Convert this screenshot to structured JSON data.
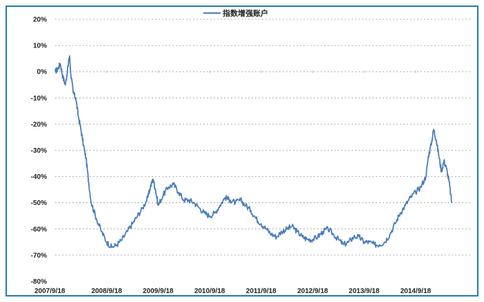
{
  "chart_data": {
    "type": "line",
    "title": "",
    "xlabel": "",
    "ylabel": "",
    "ylim": [
      -0.8,
      0.2
    ],
    "y_ticks": [
      0.2,
      0.1,
      0.0,
      -0.1,
      -0.2,
      -0.3,
      -0.4,
      -0.5,
      -0.6,
      -0.7,
      -0.8
    ],
    "y_tick_labels": [
      "20%",
      "10%",
      "0%",
      "-10%",
      "-20%",
      "-30%",
      "-40%",
      "-50%",
      "-60%",
      "-70%",
      "-80%"
    ],
    "x_tick_labels": [
      "2007/9/18",
      "2008/9/18",
      "2009/9/18",
      "2010/9/18",
      "2011/9/18",
      "2012/9/18",
      "2013/9/18",
      "2014/9/18"
    ],
    "x_range_years": [
      0,
      8.1
    ],
    "grid": "horizontal-dotted",
    "legend_position": "top-center",
    "series": [
      {
        "name": "指数增强账户",
        "color": "#4a7ebb",
        "points": [
          [
            0.0,
            0.0
          ],
          [
            0.05,
            0.01
          ],
          [
            0.1,
            0.03
          ],
          [
            0.15,
            -0.02
          ],
          [
            0.2,
            -0.05
          ],
          [
            0.25,
            0.02
          ],
          [
            0.28,
            0.06
          ],
          [
            0.3,
            0.0
          ],
          [
            0.35,
            -0.08
          ],
          [
            0.4,
            -0.1
          ],
          [
            0.45,
            -0.17
          ],
          [
            0.5,
            -0.22
          ],
          [
            0.55,
            -0.28
          ],
          [
            0.6,
            -0.33
          ],
          [
            0.65,
            -0.42
          ],
          [
            0.7,
            -0.5
          ],
          [
            0.8,
            -0.56
          ],
          [
            0.9,
            -0.61
          ],
          [
            1.0,
            -0.65
          ],
          [
            1.1,
            -0.67
          ],
          [
            1.2,
            -0.66
          ],
          [
            1.3,
            -0.64
          ],
          [
            1.4,
            -0.61
          ],
          [
            1.5,
            -0.58
          ],
          [
            1.6,
            -0.55
          ],
          [
            1.7,
            -0.52
          ],
          [
            1.8,
            -0.48
          ],
          [
            1.85,
            -0.44
          ],
          [
            1.9,
            -0.41
          ],
          [
            1.95,
            -0.45
          ],
          [
            2.0,
            -0.51
          ],
          [
            2.1,
            -0.47
          ],
          [
            2.2,
            -0.44
          ],
          [
            2.3,
            -0.43
          ],
          [
            2.4,
            -0.46
          ],
          [
            2.5,
            -0.49
          ],
          [
            2.6,
            -0.49
          ],
          [
            2.7,
            -0.5
          ],
          [
            2.8,
            -0.52
          ],
          [
            2.9,
            -0.54
          ],
          [
            3.0,
            -0.55
          ],
          [
            3.1,
            -0.54
          ],
          [
            3.2,
            -0.51
          ],
          [
            3.3,
            -0.48
          ],
          [
            3.4,
            -0.49
          ],
          [
            3.5,
            -0.5
          ],
          [
            3.6,
            -0.49
          ],
          [
            3.7,
            -0.51
          ],
          [
            3.8,
            -0.53
          ],
          [
            3.9,
            -0.56
          ],
          [
            4.0,
            -0.58
          ],
          [
            4.1,
            -0.6
          ],
          [
            4.2,
            -0.62
          ],
          [
            4.3,
            -0.63
          ],
          [
            4.4,
            -0.61
          ],
          [
            4.5,
            -0.6
          ],
          [
            4.6,
            -0.59
          ],
          [
            4.7,
            -0.61
          ],
          [
            4.8,
            -0.63
          ],
          [
            4.9,
            -0.64
          ],
          [
            5.0,
            -0.64
          ],
          [
            5.1,
            -0.63
          ],
          [
            5.2,
            -0.61
          ],
          [
            5.3,
            -0.6
          ],
          [
            5.4,
            -0.62
          ],
          [
            5.5,
            -0.64
          ],
          [
            5.6,
            -0.66
          ],
          [
            5.7,
            -0.65
          ],
          [
            5.8,
            -0.63
          ],
          [
            5.9,
            -0.63
          ],
          [
            6.0,
            -0.65
          ],
          [
            6.1,
            -0.65
          ],
          [
            6.2,
            -0.66
          ],
          [
            6.3,
            -0.66
          ],
          [
            6.4,
            -0.65
          ],
          [
            6.5,
            -0.62
          ],
          [
            6.6,
            -0.58
          ],
          [
            6.7,
            -0.54
          ],
          [
            6.8,
            -0.51
          ],
          [
            6.9,
            -0.48
          ],
          [
            7.0,
            -0.46
          ],
          [
            7.1,
            -0.44
          ],
          [
            7.2,
            -0.4
          ],
          [
            7.25,
            -0.32
          ],
          [
            7.3,
            -0.28
          ],
          [
            7.35,
            -0.22
          ],
          [
            7.4,
            -0.26
          ],
          [
            7.45,
            -0.32
          ],
          [
            7.5,
            -0.38
          ],
          [
            7.55,
            -0.34
          ],
          [
            7.6,
            -0.37
          ],
          [
            7.65,
            -0.42
          ],
          [
            7.7,
            -0.5
          ]
        ]
      }
    ]
  }
}
